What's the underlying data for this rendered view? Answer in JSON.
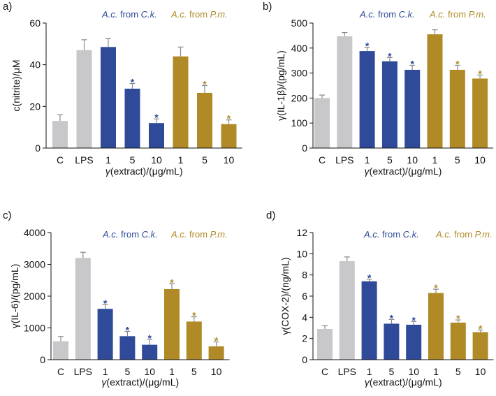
{
  "colors": {
    "control": "#c8c8cb",
    "ck": "#2e4a99",
    "pm": "#b08a27",
    "error": "#8a8a8a",
    "axis": "#111111"
  },
  "chart_data": [
    {
      "panel": "a)",
      "type": "bar",
      "ylabel": "c(nitrite)/μM",
      "xlabel": "γ(extract)/(μg/mL)",
      "ylim": [
        0,
        60
      ],
      "yticks": [
        0,
        20,
        40,
        60
      ],
      "categories": [
        "C",
        "LPS",
        "1",
        "5",
        "10",
        "1",
        "5",
        "10"
      ],
      "values": [
        13,
        47,
        48.5,
        28.5,
        12,
        44,
        26.5,
        11.5
      ],
      "errors": [
        3,
        5,
        4,
        2.5,
        2,
        4.5,
        3.5,
        2
      ],
      "groups": [
        "control",
        "control",
        "ck",
        "ck",
        "ck",
        "pm",
        "pm",
        "pm"
      ],
      "significant": [
        false,
        false,
        false,
        true,
        true,
        false,
        true,
        true
      ],
      "legend": [
        {
          "species": "A.c.",
          "from": " from ",
          "source": "C.k.",
          "group": "ck"
        },
        {
          "species": "A.c.",
          "from": " from ",
          "source": "P.m.",
          "group": "pm"
        }
      ]
    },
    {
      "panel": "b)",
      "type": "bar",
      "ylabel": "γ(IL-1β)/(pg/mL)",
      "xlabel": "γ(extract)/(μg/mL)",
      "ylim": [
        0,
        500
      ],
      "yticks": [
        0,
        100,
        200,
        300,
        400,
        500
      ],
      "categories": [
        "C",
        "LPS",
        "1",
        "5",
        "10",
        "1",
        "5",
        "10"
      ],
      "values": [
        200,
        447,
        388,
        347,
        313,
        455,
        313,
        278
      ],
      "errors": [
        12,
        15,
        15,
        15,
        18,
        18,
        18,
        14
      ],
      "groups": [
        "control",
        "control",
        "ck",
        "ck",
        "ck",
        "pm",
        "pm",
        "pm"
      ],
      "significant": [
        false,
        false,
        true,
        true,
        true,
        false,
        true,
        true
      ],
      "legend": [
        {
          "species": "A.c.",
          "from": " from ",
          "source": "C.k.",
          "group": "ck"
        },
        {
          "species": "A.c.",
          "from": " from ",
          "source": "P.m.",
          "group": "pm"
        }
      ]
    },
    {
      "panel": "c)",
      "type": "bar",
      "ylabel": "γ(IL-6)/(pg/mL)",
      "xlabel": "γ(extract)/(μg/mL)",
      "ylim": [
        0,
        4000
      ],
      "yticks": [
        0,
        1000,
        2000,
        3000,
        4000
      ],
      "categories": [
        "C",
        "LPS",
        "1",
        "5",
        "10",
        "1",
        "5",
        "10"
      ],
      "values": [
        580,
        3200,
        1600,
        740,
        470,
        2220,
        1200,
        420
      ],
      "errors": [
        150,
        180,
        140,
        150,
        170,
        170,
        150,
        140
      ],
      "groups": [
        "control",
        "control",
        "ck",
        "ck",
        "ck",
        "pm",
        "pm",
        "pm"
      ],
      "significant": [
        false,
        false,
        true,
        true,
        true,
        true,
        true,
        true
      ],
      "legend": [
        {
          "species": "A.c.",
          "from": " from ",
          "source": "C.k.",
          "group": "ck"
        },
        {
          "species": "A.c.",
          "from": " from ",
          "source": "P.m.",
          "group": "pm"
        }
      ]
    },
    {
      "panel": "d)",
      "type": "bar",
      "ylabel": "γ(COX-2)/(ng/mL)",
      "xlabel": "γ(extract)/(μg/mL)",
      "ylim": [
        0,
        12
      ],
      "yticks": [
        0,
        2,
        4,
        6,
        8,
        10,
        12
      ],
      "categories": [
        "C",
        "LPS",
        "1",
        "5",
        "10",
        "1",
        "5",
        "10"
      ],
      "values": [
        2.9,
        9.3,
        7.4,
        3.4,
        3.3,
        6.3,
        3.5,
        2.6
      ],
      "errors": [
        0.3,
        0.4,
        0.2,
        0.4,
        0.3,
        0.35,
        0.25,
        0.2
      ],
      "groups": [
        "control",
        "control",
        "ck",
        "ck",
        "ck",
        "pm",
        "pm",
        "pm"
      ],
      "significant": [
        false,
        false,
        true,
        true,
        true,
        true,
        true,
        true
      ],
      "legend": [
        {
          "species": "A.c.",
          "from": " from ",
          "source": "C.k.",
          "group": "ck"
        },
        {
          "species": "A.c.",
          "from": " from ",
          "source": "P.m.",
          "group": "pm"
        }
      ]
    }
  ]
}
